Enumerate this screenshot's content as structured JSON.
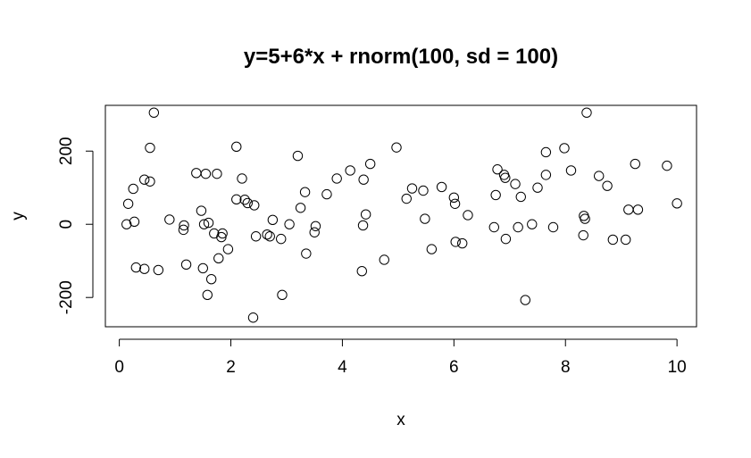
{
  "chart_data": {
    "type": "scatter",
    "title": "y=5+6*x + rnorm(100, sd = 100)",
    "xlabel": "x",
    "ylabel": "y",
    "xlim": [
      -0.25,
      10.35
    ],
    "ylim": [
      -280,
      325
    ],
    "xticks": [
      0,
      2,
      4,
      6,
      8,
      10
    ],
    "yticks": [
      -200,
      0,
      200
    ],
    "grid": false,
    "points": [
      [
        0.13,
        0
      ],
      [
        0.16,
        56
      ],
      [
        0.25,
        97
      ],
      [
        0.27,
        7
      ],
      [
        0.3,
        -118
      ],
      [
        0.45,
        122
      ],
      [
        0.45,
        -122
      ],
      [
        0.55,
        209
      ],
      [
        0.55,
        117
      ],
      [
        0.62,
        305
      ],
      [
        0.7,
        -125
      ],
      [
        0.9,
        13
      ],
      [
        1.15,
        -15
      ],
      [
        1.16,
        -3
      ],
      [
        1.2,
        -110
      ],
      [
        1.38,
        140
      ],
      [
        1.47,
        37
      ],
      [
        1.5,
        -120
      ],
      [
        1.52,
        0
      ],
      [
        1.55,
        138
      ],
      [
        1.58,
        -193
      ],
      [
        1.6,
        4
      ],
      [
        1.65,
        -150
      ],
      [
        1.7,
        -25
      ],
      [
        1.75,
        138
      ],
      [
        1.78,
        -93
      ],
      [
        1.83,
        -35
      ],
      [
        1.85,
        -25
      ],
      [
        1.95,
        -68
      ],
      [
        2.1,
        212
      ],
      [
        2.1,
        68
      ],
      [
        2.2,
        125
      ],
      [
        2.25,
        67
      ],
      [
        2.3,
        58
      ],
      [
        2.42,
        52
      ],
      [
        2.4,
        -255
      ],
      [
        2.45,
        -33
      ],
      [
        2.65,
        -28
      ],
      [
        2.7,
        -33
      ],
      [
        2.75,
        12
      ],
      [
        2.9,
        -40
      ],
      [
        2.92,
        -193
      ],
      [
        3.05,
        0
      ],
      [
        3.2,
        187
      ],
      [
        3.25,
        45
      ],
      [
        3.33,
        88
      ],
      [
        3.35,
        -80
      ],
      [
        3.5,
        -22
      ],
      [
        3.52,
        -5
      ],
      [
        3.72,
        82
      ],
      [
        3.9,
        125
      ],
      [
        4.14,
        147
      ],
      [
        4.35,
        -128
      ],
      [
        4.37,
        -3
      ],
      [
        4.38,
        122
      ],
      [
        4.42,
        27
      ],
      [
        4.5,
        165
      ],
      [
        4.75,
        -97
      ],
      [
        4.97,
        210
      ],
      [
        5.15,
        70
      ],
      [
        5.25,
        98
      ],
      [
        5.45,
        92
      ],
      [
        5.48,
        15
      ],
      [
        5.6,
        -68
      ],
      [
        5.78,
        102
      ],
      [
        6.0,
        73
      ],
      [
        6.02,
        56
      ],
      [
        6.03,
        -48
      ],
      [
        6.15,
        -52
      ],
      [
        6.25,
        25
      ],
      [
        6.72,
        -8
      ],
      [
        6.75,
        80
      ],
      [
        6.78,
        150
      ],
      [
        6.9,
        135
      ],
      [
        6.92,
        127
      ],
      [
        6.93,
        -40
      ],
      [
        7.1,
        110
      ],
      [
        7.15,
        -8
      ],
      [
        7.2,
        75
      ],
      [
        7.28,
        -207
      ],
      [
        7.4,
        0
      ],
      [
        7.5,
        100
      ],
      [
        7.65,
        197
      ],
      [
        7.65,
        135
      ],
      [
        7.78,
        -8
      ],
      [
        7.98,
        208
      ],
      [
        8.1,
        147
      ],
      [
        8.32,
        -30
      ],
      [
        8.33,
        23
      ],
      [
        8.35,
        15
      ],
      [
        8.38,
        305
      ],
      [
        8.6,
        132
      ],
      [
        8.75,
        105
      ],
      [
        8.85,
        -42
      ],
      [
        9.08,
        -42
      ],
      [
        9.13,
        40
      ],
      [
        9.25,
        165
      ],
      [
        9.3,
        40
      ],
      [
        9.82,
        160
      ],
      [
        10.0,
        57
      ]
    ]
  }
}
